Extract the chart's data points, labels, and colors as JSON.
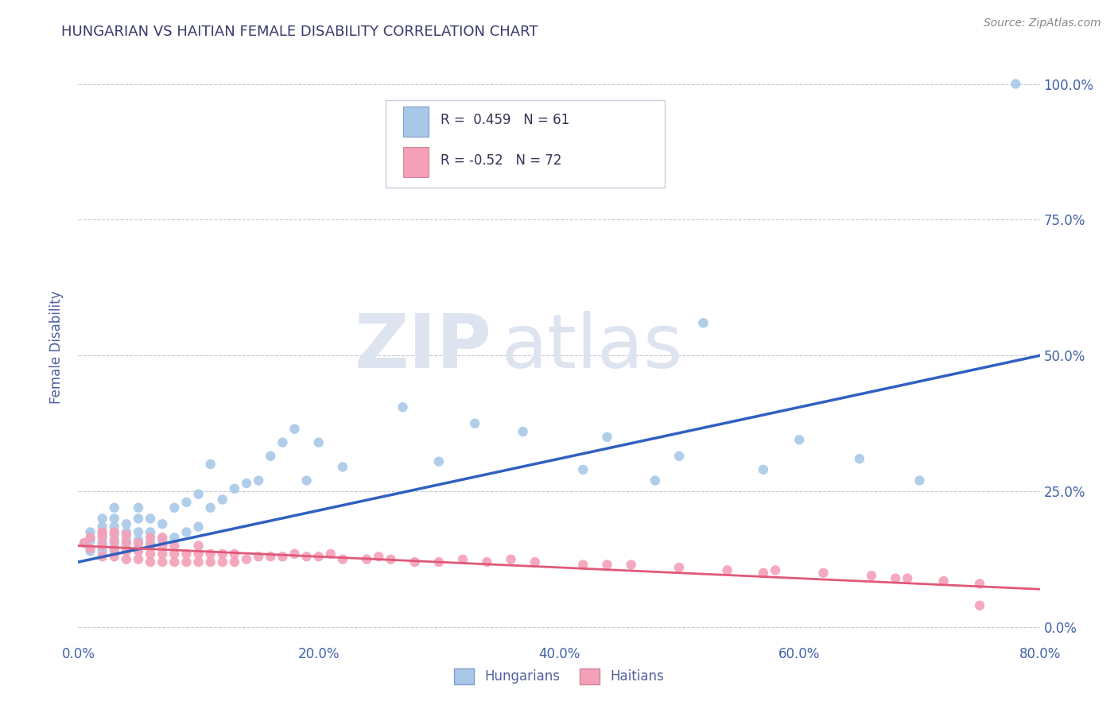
{
  "title": "HUNGARIAN VS HAITIAN FEMALE DISABILITY CORRELATION CHART",
  "source_text": "Source: ZipAtlas.com",
  "ylabel": "Female Disability",
  "xlim": [
    0.0,
    0.8
  ],
  "ylim": [
    -0.02,
    1.05
  ],
  "xtick_labels": [
    "0.0%",
    "20.0%",
    "40.0%",
    "60.0%",
    "80.0%"
  ],
  "xtick_values": [
    0.0,
    0.2,
    0.4,
    0.6,
    0.8
  ],
  "ytick_values": [
    0.0,
    0.25,
    0.5,
    0.75,
    1.0
  ],
  "right_ytick_labels": [
    "100.0%",
    "75.0%",
    "50.0%",
    "25.0%",
    "0.0%"
  ],
  "right_ytick_values": [
    1.0,
    0.75,
    0.5,
    0.25,
    0.0
  ],
  "hungarian_color": "#a8c8e8",
  "haitian_color": "#f4a0b8",
  "hungarian_line_color": "#3060c0",
  "haitian_line_color": "#e05878",
  "hungarian_R": 0.459,
  "hungarian_N": 61,
  "haitian_R": -0.52,
  "haitian_N": 72,
  "title_color": "#3a3a6e",
  "axis_label_color": "#5060a0",
  "tick_color": "#4060a8",
  "grid_color": "#c8c8d8",
  "background_color": "#ffffff",
  "watermark_color": "#dde4f0",
  "hungarian_x": [
    0.005,
    0.01,
    0.01,
    0.01,
    0.02,
    0.02,
    0.02,
    0.02,
    0.02,
    0.03,
    0.03,
    0.03,
    0.03,
    0.03,
    0.03,
    0.04,
    0.04,
    0.04,
    0.04,
    0.05,
    0.05,
    0.05,
    0.05,
    0.05,
    0.06,
    0.06,
    0.06,
    0.07,
    0.07,
    0.08,
    0.08,
    0.09,
    0.09,
    0.1,
    0.1,
    0.11,
    0.11,
    0.12,
    0.13,
    0.14,
    0.15,
    0.16,
    0.17,
    0.18,
    0.19,
    0.2,
    0.22,
    0.27,
    0.3,
    0.33,
    0.37,
    0.42,
    0.44,
    0.48,
    0.5,
    0.52,
    0.57,
    0.6,
    0.65,
    0.7,
    0.78
  ],
  "hungarian_y": [
    0.155,
    0.14,
    0.16,
    0.175,
    0.14,
    0.155,
    0.17,
    0.185,
    0.2,
    0.14,
    0.155,
    0.17,
    0.185,
    0.2,
    0.22,
    0.145,
    0.16,
    0.175,
    0.19,
    0.145,
    0.16,
    0.175,
    0.2,
    0.22,
    0.155,
    0.175,
    0.2,
    0.16,
    0.19,
    0.165,
    0.22,
    0.175,
    0.23,
    0.185,
    0.245,
    0.22,
    0.3,
    0.235,
    0.255,
    0.265,
    0.27,
    0.315,
    0.34,
    0.365,
    0.27,
    0.34,
    0.295,
    0.405,
    0.305,
    0.375,
    0.36,
    0.29,
    0.35,
    0.27,
    0.315,
    0.56,
    0.29,
    0.345,
    0.31,
    0.27,
    1.0
  ],
  "haitian_x": [
    0.005,
    0.01,
    0.01,
    0.02,
    0.02,
    0.02,
    0.02,
    0.03,
    0.03,
    0.03,
    0.03,
    0.04,
    0.04,
    0.04,
    0.04,
    0.05,
    0.05,
    0.05,
    0.06,
    0.06,
    0.06,
    0.06,
    0.07,
    0.07,
    0.07,
    0.07,
    0.08,
    0.08,
    0.08,
    0.09,
    0.09,
    0.1,
    0.1,
    0.1,
    0.11,
    0.11,
    0.12,
    0.12,
    0.13,
    0.13,
    0.14,
    0.15,
    0.16,
    0.17,
    0.18,
    0.19,
    0.2,
    0.21,
    0.22,
    0.24,
    0.25,
    0.26,
    0.28,
    0.3,
    0.32,
    0.34,
    0.36,
    0.38,
    0.42,
    0.44,
    0.46,
    0.5,
    0.54,
    0.58,
    0.62,
    0.66,
    0.69,
    0.72,
    0.75,
    0.68,
    0.57,
    0.75
  ],
  "haitian_y": [
    0.155,
    0.145,
    0.165,
    0.13,
    0.15,
    0.165,
    0.175,
    0.13,
    0.145,
    0.16,
    0.175,
    0.125,
    0.14,
    0.155,
    0.17,
    0.125,
    0.14,
    0.155,
    0.12,
    0.135,
    0.15,
    0.165,
    0.12,
    0.135,
    0.15,
    0.165,
    0.12,
    0.135,
    0.15,
    0.12,
    0.135,
    0.12,
    0.135,
    0.15,
    0.12,
    0.135,
    0.12,
    0.135,
    0.12,
    0.135,
    0.125,
    0.13,
    0.13,
    0.13,
    0.135,
    0.13,
    0.13,
    0.135,
    0.125,
    0.125,
    0.13,
    0.125,
    0.12,
    0.12,
    0.125,
    0.12,
    0.125,
    0.12,
    0.115,
    0.115,
    0.115,
    0.11,
    0.105,
    0.105,
    0.1,
    0.095,
    0.09,
    0.085,
    0.08,
    0.09,
    0.1,
    0.04
  ]
}
